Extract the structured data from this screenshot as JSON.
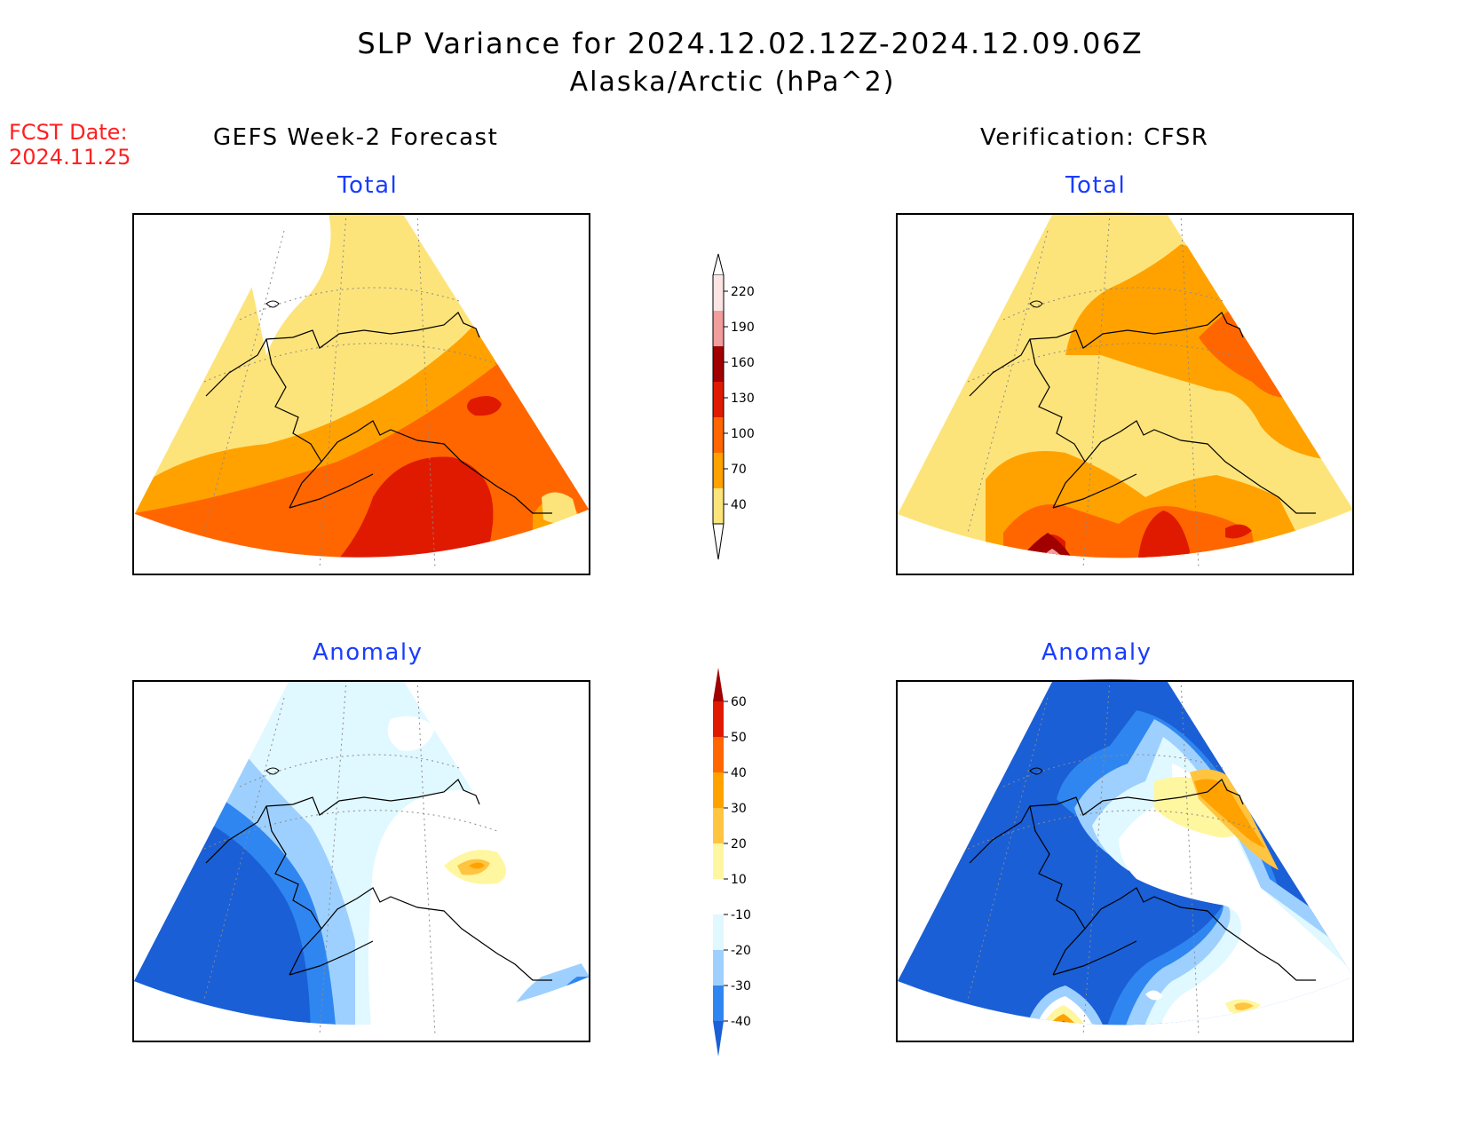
{
  "header": {
    "title": "SLP Variance for 2024.12.02.12Z-2024.12.09.06Z",
    "subtitle": "Alaska/Arctic (hPa^2)",
    "fcst_label": "FCST Date:",
    "fcst_date": "2024.11.25"
  },
  "columns": {
    "left": "GEFS Week-2 Forecast",
    "right": "Verification: CFSR"
  },
  "panels": {
    "top_left_title": "Total",
    "top_right_title": "Total",
    "bottom_left_title": "Anomaly",
    "bottom_right_title": "Anomaly"
  },
  "legend_total": {
    "labels": [
      "220",
      "190",
      "160",
      "130",
      "100",
      "70",
      "40"
    ],
    "colors": [
      "#fde4e4",
      "#f29d9d",
      "#a00000",
      "#e01a00",
      "#ff6600",
      "#ffa200",
      "#fde47a"
    ]
  },
  "legend_anomaly": {
    "labels": [
      "60",
      "50",
      "40",
      "30",
      "20",
      "10",
      "-10",
      "-20",
      "-30",
      "-40"
    ],
    "colors": [
      "#a00000",
      "#e01a00",
      "#ff6600",
      "#ffa200",
      "#ffc440",
      "#fff6a0",
      "#ffffff",
      "#e0f8ff",
      "#9ed0ff",
      "#2f86f0",
      "#1a5fd6"
    ]
  }
}
